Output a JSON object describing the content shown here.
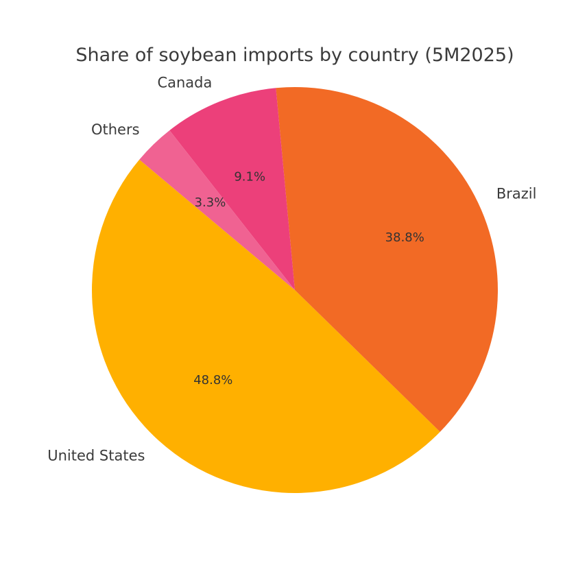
{
  "chart_data": {
    "type": "pie",
    "title": "Share of soybean imports by country (5M2025)",
    "categories": [
      "United States",
      "Brazil",
      "Canada",
      "Others"
    ],
    "values": [
      48.8,
      38.8,
      9.1,
      3.3
    ],
    "value_labels": [
      "48.8%",
      "38.8%",
      "9.1%",
      "3.3%"
    ],
    "colors": [
      "#FFB000",
      "#F26A25",
      "#EC407A",
      "#F06292"
    ],
    "start_angle_deg": 140,
    "direction": "counterclockwise",
    "legend": "none"
  }
}
